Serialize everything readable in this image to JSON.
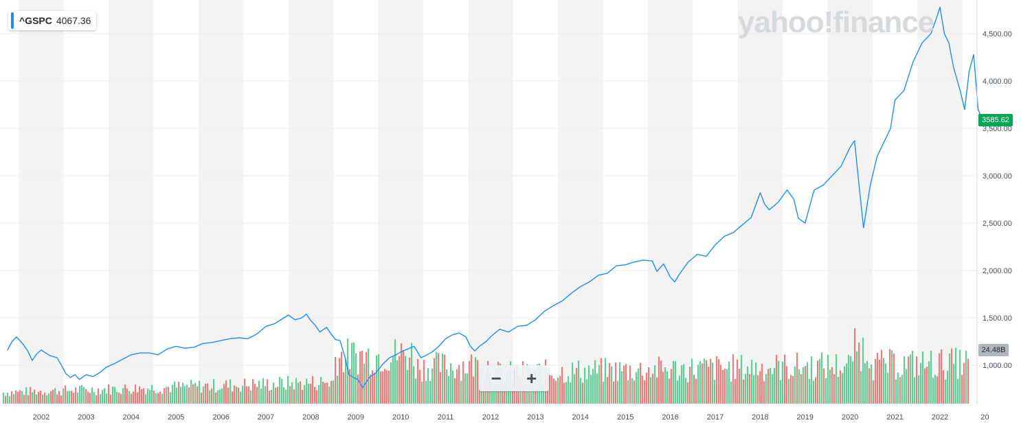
{
  "symbol": {
    "ticker": "^GSPC",
    "value": "4067.36"
  },
  "watermark": "yahoo!finance",
  "last_price_label": "3585.62",
  "volume_label": "24.48B",
  "zoom": {
    "out_label": "−",
    "in_label": "+"
  },
  "colors": {
    "line": "#188fff",
    "up_volume": "#4ccb88",
    "down_volume": "#f36b6b",
    "price_badge": "#00a854"
  },
  "chart_data": {
    "type": "line",
    "title": "",
    "xlabel": "",
    "ylabel": "",
    "ylim": [
      600,
      4850
    ],
    "yticks": [
      1000,
      1500,
      2000,
      2500,
      3000,
      3500,
      4000,
      4500
    ],
    "ytick_labels": [
      "1,000.00",
      "1,500.00",
      "2,000.00",
      "2,500.00",
      "3,000.00",
      "3,500.00",
      "4,000.00",
      "4,500.00"
    ],
    "xtick_labels": [
      "2002",
      "2003",
      "2004",
      "2005",
      "2006",
      "2007",
      "2008",
      "2009",
      "2010",
      "2011",
      "2012",
      "2013",
      "2014",
      "2015",
      "2016",
      "2017",
      "2018",
      "2019",
      "2020",
      "2021",
      "2022",
      "20"
    ],
    "x_range": [
      2001.25,
      2022.95
    ],
    "grid": true,
    "series": [
      {
        "x": [
          2001.25,
          2001.35,
          2001.45,
          2001.6,
          2001.7,
          2001.8,
          2001.9,
          2002.0,
          2002.1,
          2002.2,
          2002.35,
          2002.45,
          2002.55,
          2002.65,
          2002.75,
          2002.85,
          2003.0,
          2003.15,
          2003.3,
          2003.45,
          2003.6,
          2003.8,
          2004.0,
          2004.2,
          2004.4,
          2004.6,
          2004.8,
          2005.0,
          2005.2,
          2005.4,
          2005.6,
          2005.8,
          2006.0,
          2006.2,
          2006.4,
          2006.6,
          2006.8,
          2007.0,
          2007.2,
          2007.4,
          2007.5,
          2007.65,
          2007.8,
          2007.9,
          2008.0,
          2008.1,
          2008.2,
          2008.35,
          2008.45,
          2008.55,
          2008.65,
          2008.75,
          2008.85,
          2008.95,
          2009.05,
          2009.15,
          2009.3,
          2009.45,
          2009.6,
          2009.75,
          2009.9,
          2010.0,
          2010.15,
          2010.3,
          2010.45,
          2010.55,
          2010.7,
          2010.85,
          2011.0,
          2011.15,
          2011.3,
          2011.45,
          2011.55,
          2011.65,
          2011.75,
          2011.9,
          2012.0,
          2012.2,
          2012.4,
          2012.6,
          2012.8,
          2013.0,
          2013.2,
          2013.4,
          2013.6,
          2013.8,
          2014.0,
          2014.2,
          2014.4,
          2014.6,
          2014.8,
          2015.0,
          2015.2,
          2015.4,
          2015.6,
          2015.7,
          2015.85,
          2016.0,
          2016.1,
          2016.2,
          2016.4,
          2016.6,
          2016.8,
          2017.0,
          2017.2,
          2017.4,
          2017.6,
          2017.8,
          2018.0,
          2018.1,
          2018.2,
          2018.4,
          2018.6,
          2018.75,
          2018.85,
          2019.0,
          2019.2,
          2019.4,
          2019.6,
          2019.8,
          2020.0,
          2020.1,
          2020.2,
          2020.3,
          2020.45,
          2020.6,
          2020.75,
          2020.9,
          2021.0,
          2021.2,
          2021.4,
          2021.6,
          2021.8,
          2021.95,
          2022.0,
          2022.1,
          2022.2,
          2022.3,
          2022.45,
          2022.55,
          2022.65,
          2022.75,
          2022.85,
          2022.95
        ],
        "values": [
          1160,
          1250,
          1300,
          1220,
          1150,
          1050,
          1120,
          1160,
          1130,
          1100,
          1080,
          1000,
          910,
          870,
          900,
          850,
          900,
          880,
          920,
          980,
          1010,
          1060,
          1110,
          1130,
          1130,
          1110,
          1170,
          1200,
          1180,
          1190,
          1230,
          1240,
          1260,
          1280,
          1290,
          1280,
          1330,
          1410,
          1440,
          1500,
          1530,
          1480,
          1500,
          1540,
          1470,
          1420,
          1350,
          1400,
          1330,
          1270,
          1260,
          1100,
          900,
          870,
          850,
          760,
          870,
          920,
          1010,
          1080,
          1110,
          1140,
          1170,
          1200,
          1080,
          1100,
          1140,
          1200,
          1280,
          1320,
          1340,
          1300,
          1200,
          1150,
          1200,
          1250,
          1300,
          1380,
          1350,
          1410,
          1420,
          1480,
          1570,
          1630,
          1680,
          1760,
          1830,
          1880,
          1950,
          1970,
          2050,
          2060,
          2090,
          2110,
          2100,
          1990,
          2070,
          1930,
          1880,
          1960,
          2090,
          2170,
          2150,
          2270,
          2360,
          2400,
          2480,
          2560,
          2820,
          2700,
          2640,
          2720,
          2850,
          2750,
          2550,
          2500,
          2850,
          2900,
          3000,
          3100,
          3300,
          3370,
          2900,
          2450,
          2900,
          3200,
          3350,
          3500,
          3800,
          3900,
          4200,
          4400,
          4500,
          4700,
          4780,
          4500,
          4400,
          4150,
          3900,
          3700,
          4100,
          4280,
          3700,
          3585.62
        ]
      }
    ]
  }
}
